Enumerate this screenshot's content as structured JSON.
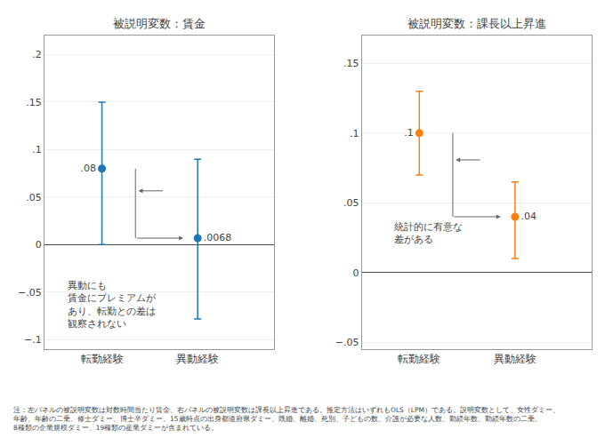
{
  "chart_data": [
    {
      "type": "scatter",
      "title": "被説明変数：賃金",
      "categories": [
        "転勤経験",
        "異動経験"
      ],
      "values": [
        0.08,
        0.0068
      ],
      "value_labels": [
        ".08",
        ".0068"
      ],
      "yerr_low": [
        0.08,
        0.085
      ],
      "yerr_high": [
        0.07,
        0.083
      ],
      "data_labels": true,
      "marker": "circle",
      "annotations": [
        "異動にも\n賃金にプレミアムが\nあり、転勤との差は\n観察されない"
      ],
      "ylim": [
        -0.11,
        0.22
      ],
      "yticks": [
        {
          "value": -0.1,
          "label": "−.1"
        },
        {
          "value": -0.05,
          "label": "−.05"
        },
        0,
        {
          "value": 0.05,
          "label": ".05"
        },
        {
          "value": 0.1,
          "label": ".1"
        },
        {
          "value": 0.15,
          "label": ".15"
        },
        {
          "value": 0.2,
          "label": ".2"
        }
      ],
      "grid": true
    },
    {
      "type": "scatter",
      "title": "被説明変数：課長以上昇進",
      "categories": [
        "転勤経験",
        "異動経験"
      ],
      "values": [
        0.1,
        0.04
      ],
      "value_labels": [
        ".1",
        ".04"
      ],
      "yerr_low": [
        0.03,
        0.03
      ],
      "yerr_high": [
        0.03,
        0.025
      ],
      "data_labels": true,
      "marker": "circle",
      "annotations": [
        "統計的に有意な\n差がある"
      ],
      "ylim": [
        -0.055,
        0.17
      ],
      "yticks": [
        {
          "value": -0.05,
          "label": "−.05"
        },
        0,
        {
          "value": 0.05,
          "label": ".05"
        },
        {
          "value": 0.1,
          "label": ".1"
        },
        {
          "value": 0.15,
          "label": ".15"
        }
      ],
      "grid": true
    }
  ],
  "annotations": [
    "注：左パネルの被説明変数は対数時間当たり賃金、右パネルの被説明変数は課長以上昇進である。推定方法はいずれもOLS（LPM）である。説明変数として、女性ダミー、\n年齢、年齢の二乗、修士ダミー、博士卒ダミー、15歳時点の出身都道府県ダミー、既婚、離婚、死別、子どもの数、介護が必要な人数、勤続年数、勤続年数の二乗、\n8種類の企業規模ダミー、19種類の産業ダミーが含まれている。"
  ]
}
